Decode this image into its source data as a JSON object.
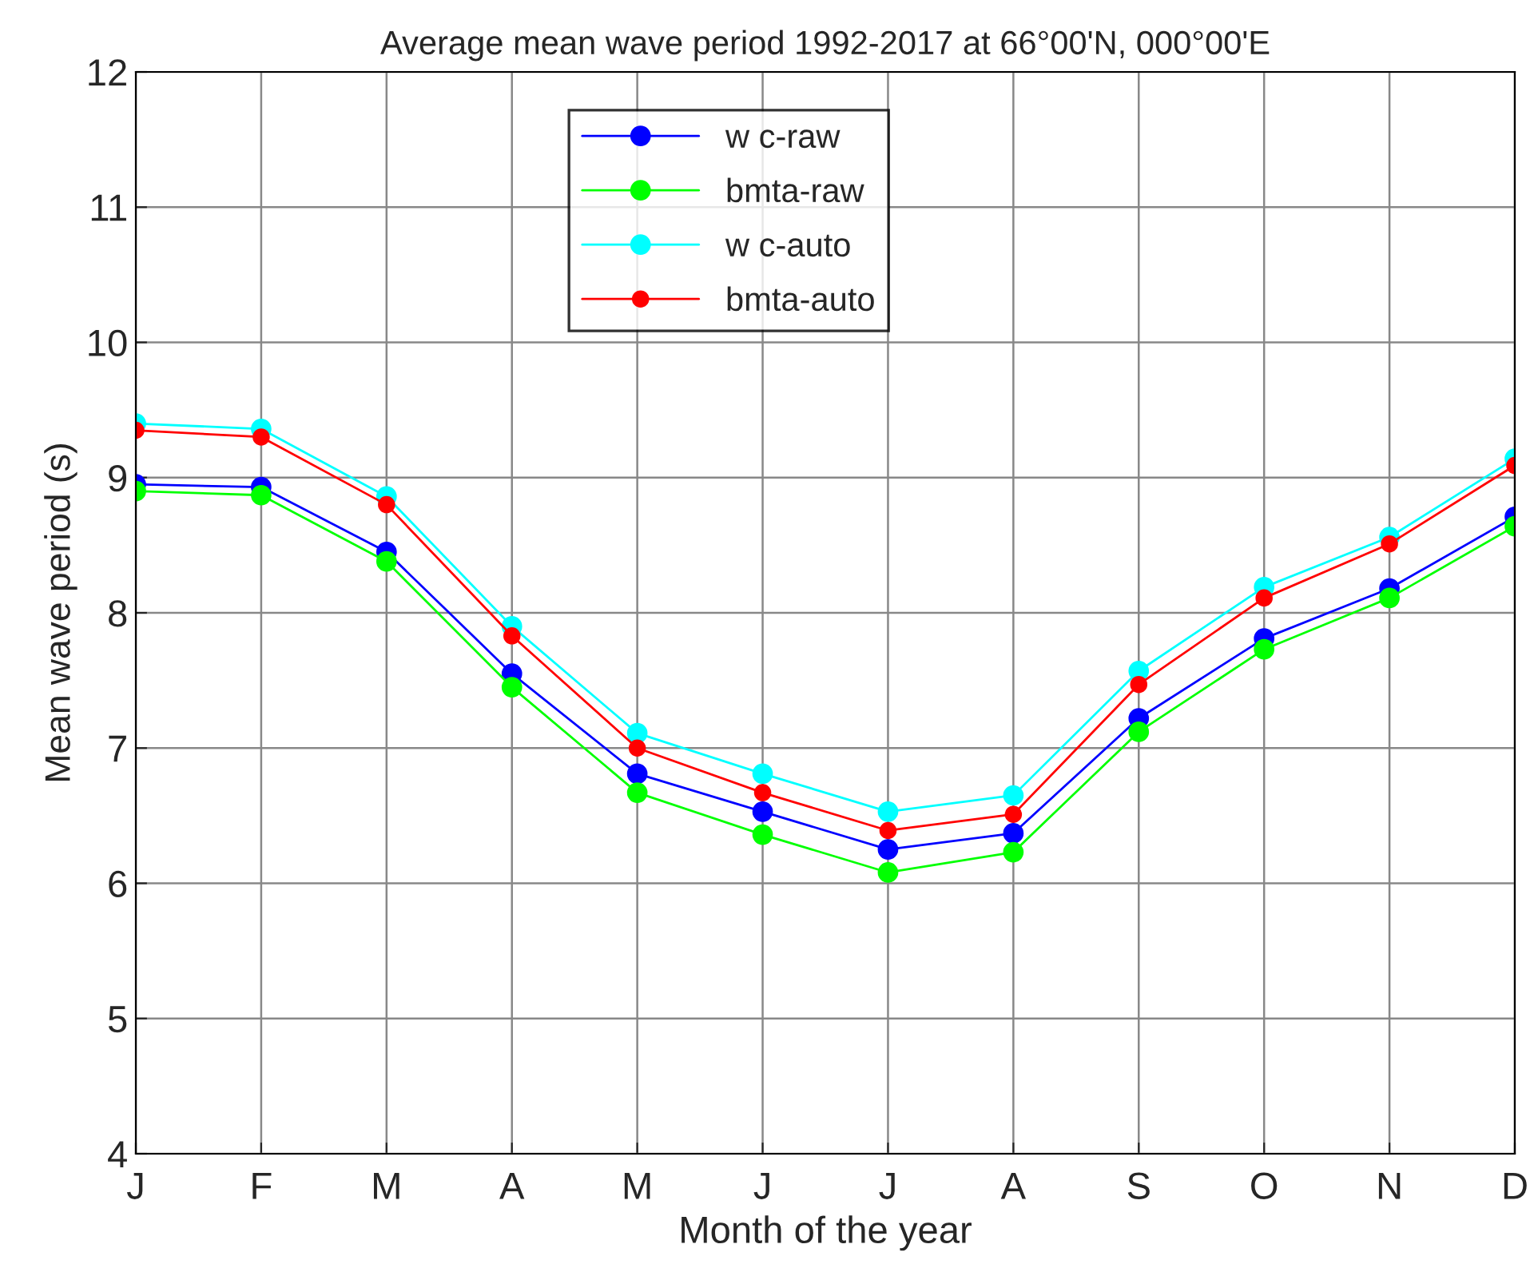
{
  "chart_data": {
    "type": "line",
    "title": "Average mean wave period 1992-2017 at 66°00'N, 000°00'E",
    "xlabel": "Month of the year",
    "ylabel": "Mean wave period (s)",
    "categories": [
      "J",
      "F",
      "M",
      "A",
      "M",
      "J",
      "J",
      "A",
      "S",
      "O",
      "N",
      "D"
    ],
    "series": [
      {
        "name": "w c-raw",
        "color": "#0000ff",
        "values": [
          8.95,
          8.93,
          8.45,
          7.55,
          6.81,
          6.53,
          6.25,
          6.37,
          7.22,
          7.81,
          8.18,
          8.71
        ]
      },
      {
        "name": "bmta-raw",
        "color": "#00ff00",
        "values": [
          8.9,
          8.87,
          8.38,
          7.45,
          6.67,
          6.36,
          6.08,
          6.23,
          7.12,
          7.73,
          8.11,
          8.64
        ]
      },
      {
        "name": "w c-auto",
        "color": "#00ffff",
        "values": [
          9.4,
          9.36,
          8.86,
          7.9,
          7.11,
          6.81,
          6.53,
          6.65,
          7.57,
          8.19,
          8.56,
          9.14
        ]
      },
      {
        "name": "bmta-auto",
        "color": "#ff0000",
        "values": [
          9.35,
          9.3,
          8.8,
          7.83,
          7.0,
          6.67,
          6.39,
          6.51,
          7.47,
          8.11,
          8.51,
          9.09
        ]
      }
    ],
    "ylim": [
      4,
      12
    ],
    "yticks": [
      4,
      5,
      6,
      7,
      8,
      9,
      10,
      11,
      12
    ],
    "grid": true,
    "legend": "top",
    "marker": "circle",
    "line_style": "solid"
  }
}
